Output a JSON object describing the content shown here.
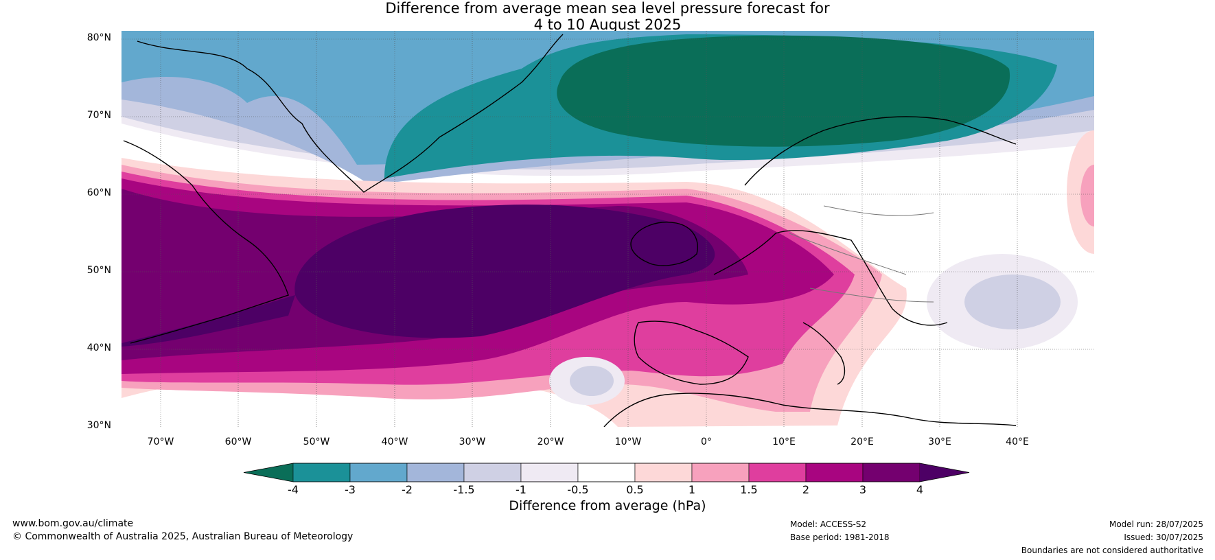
{
  "title": {
    "line1": "Difference from average mean sea level pressure forecast for",
    "line2": "4 to 10 August 2025"
  },
  "map": {
    "lat_labels": [
      "80°N",
      "70°N",
      "60°N",
      "50°N",
      "40°N",
      "30°N"
    ],
    "lon_labels": [
      "70°W",
      "60°W",
      "50°W",
      "40°W",
      "30°W",
      "20°W",
      "10°W",
      "0°",
      "10°E",
      "20°E",
      "30°E",
      "40°E"
    ]
  },
  "colorbar": {
    "label": "Difference from average (hPa)",
    "ticks": [
      "-4",
      "-3",
      "-2",
      "-1.5",
      "-1",
      "-0.5",
      "0.5",
      "1",
      "1.5",
      "2",
      "3",
      "4"
    ],
    "colors": [
      "#0a6e58",
      "#1b9198",
      "#62a8cd",
      "#a3b6da",
      "#cfd0e4",
      "#efeaf3",
      "#ffffff",
      "#fdd8d8",
      "#f7a1bd",
      "#df3e9e",
      "#a80580",
      "#74006f",
      "#4d0065"
    ]
  },
  "footer": {
    "website": "www.bom.gov.au/climate",
    "copyright": "© Commonwealth of Australia 2025, Australian Bureau of Meteorology",
    "model": "Model: ACCESS-S2",
    "base_period": "Base period: 1981-2018",
    "model_run": "Model run: 28/07/2025",
    "issued": "Issued: 30/07/2025",
    "disclaimer": "Boundaries are not considered authoritative"
  }
}
